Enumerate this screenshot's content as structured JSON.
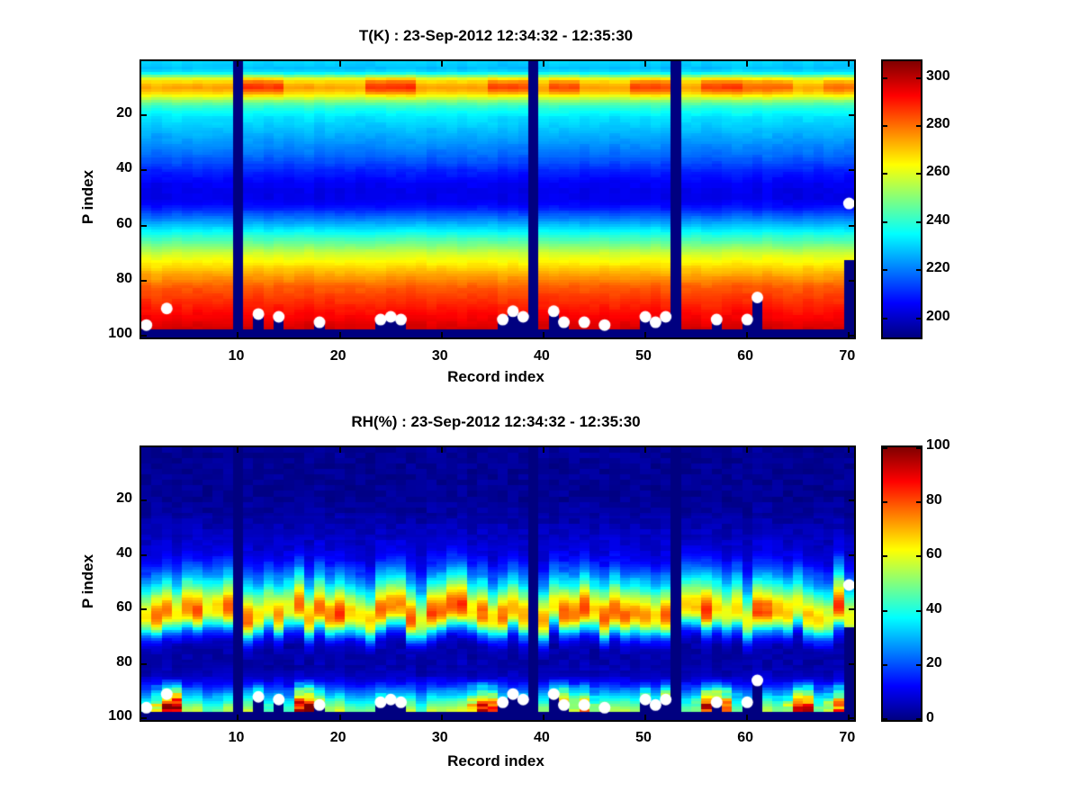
{
  "figure": {
    "background": "#ffffff",
    "missing_data_color": "#000080",
    "marker_color": "#ffffff"
  },
  "chart_data": [
    {
      "type": "heatmap",
      "kind": "T",
      "title": "T(K) : 23-Sep-2012 12:34:32 - 12:35:30",
      "xlabel": "Record index",
      "ylabel": "P index",
      "x_range": [
        1,
        70
      ],
      "y_range": [
        1,
        100
      ],
      "y_axis_reversed": true,
      "x_ticks": [
        10,
        20,
        30,
        40,
        50,
        60,
        70
      ],
      "y_ticks": [
        20,
        40,
        60,
        80,
        100
      ],
      "grid": false,
      "colormap": "jet",
      "color_range": [
        192,
        307
      ],
      "colorbar_ticks": [
        300,
        280,
        260,
        240,
        220,
        200
      ],
      "profile_by_p": [
        230,
        229,
        228,
        230,
        236,
        248,
        260,
        268,
        272,
        274,
        272,
        268,
        262,
        256,
        250,
        245,
        241,
        238,
        236,
        234,
        232,
        231,
        230,
        229,
        228,
        227,
        226,
        225,
        224,
        223,
        222,
        221,
        220,
        219,
        218,
        216,
        215,
        213,
        212,
        210,
        209,
        208,
        207,
        206,
        205,
        205,
        204,
        204,
        204,
        204,
        205,
        206,
        208,
        210,
        213,
        216,
        219,
        222,
        225,
        228,
        231,
        234,
        237,
        240,
        243,
        246,
        249,
        252,
        255,
        258,
        260,
        262,
        264,
        266,
        268,
        270,
        272,
        274,
        276,
        278,
        280,
        282,
        283,
        284,
        285,
        286,
        287,
        288,
        289,
        290,
        291,
        292,
        293,
        294,
        295,
        296,
        297,
        297,
        297,
        297
      ],
      "warm_blobs": [
        {
          "from_record": 11,
          "to_record": 14,
          "delta": 13
        },
        {
          "from_record": 23,
          "to_record": 27,
          "delta": 14
        },
        {
          "from_record": 35,
          "to_record": 38,
          "delta": 12
        },
        {
          "from_record": 41,
          "to_record": 43,
          "delta": 10
        },
        {
          "from_record": 49,
          "to_record": 52,
          "delta": 11
        },
        {
          "from_record": 56,
          "to_record": 59,
          "delta": 12
        },
        {
          "from_record": 60,
          "to_record": 64,
          "delta": 7
        },
        {
          "from_record": 68,
          "to_record": 70,
          "delta": 7
        }
      ],
      "missing_records": [
        10,
        39,
        53
      ],
      "missing_bottom_from_p": 98,
      "partial_missing": [
        {
          "record": 70,
          "from_p": 73
        },
        {
          "record": 61,
          "from_p": 87
        },
        {
          "record": 12,
          "from_p": 93
        },
        {
          "record": 14,
          "from_p": 94
        },
        {
          "record": 18,
          "from_p": 96
        },
        {
          "record": 24,
          "from_p": 95
        },
        {
          "record": 25,
          "from_p": 94
        },
        {
          "record": 26,
          "from_p": 95
        },
        {
          "record": 36,
          "from_p": 95
        },
        {
          "record": 37,
          "from_p": 92
        },
        {
          "record": 38,
          "from_p": 94
        },
        {
          "record": 41,
          "from_p": 92
        },
        {
          "record": 42,
          "from_p": 96
        },
        {
          "record": 50,
          "from_p": 94
        },
        {
          "record": 51,
          "from_p": 96
        },
        {
          "record": 52,
          "from_p": 94
        },
        {
          "record": 57,
          "from_p": 95
        },
        {
          "record": 60,
          "from_p": 95
        }
      ],
      "markers": [
        {
          "record": 1,
          "p": 96
        },
        {
          "record": 3,
          "p": 90
        },
        {
          "record": 12,
          "p": 92
        },
        {
          "record": 14,
          "p": 93
        },
        {
          "record": 18,
          "p": 95
        },
        {
          "record": 24,
          "p": 94
        },
        {
          "record": 25,
          "p": 93
        },
        {
          "record": 26,
          "p": 94
        },
        {
          "record": 36,
          "p": 94
        },
        {
          "record": 37,
          "p": 91
        },
        {
          "record": 38,
          "p": 93
        },
        {
          "record": 41,
          "p": 91
        },
        {
          "record": 42,
          "p": 95
        },
        {
          "record": 44,
          "p": 95
        },
        {
          "record": 46,
          "p": 96
        },
        {
          "record": 50,
          "p": 93
        },
        {
          "record": 51,
          "p": 95
        },
        {
          "record": 52,
          "p": 93
        },
        {
          "record": 57,
          "p": 94
        },
        {
          "record": 60,
          "p": 94
        },
        {
          "record": 61,
          "p": 86
        },
        {
          "record": 70,
          "p": 52
        }
      ]
    },
    {
      "type": "heatmap",
      "kind": "RH",
      "title": "RH(%) : 23-Sep-2012 12:34:32 - 12:35:30",
      "xlabel": "Record index",
      "ylabel": "P index",
      "x_range": [
        1,
        70
      ],
      "y_range": [
        1,
        100
      ],
      "y_axis_reversed": true,
      "x_ticks": [
        10,
        20,
        30,
        40,
        50,
        60,
        70
      ],
      "y_ticks": [
        20,
        40,
        60,
        80,
        100
      ],
      "grid": false,
      "colormap": "jet",
      "color_range": [
        0,
        100
      ],
      "colorbar_ticks": [
        100,
        80,
        60,
        40,
        20,
        0
      ],
      "profile_by_p": [
        2,
        2,
        2,
        2,
        2,
        2,
        2,
        2,
        2,
        2,
        2,
        2,
        2,
        2,
        2,
        2,
        2,
        2,
        2,
        2,
        3,
        3,
        3,
        3,
        3,
        4,
        4,
        4,
        5,
        5,
        6,
        6,
        6,
        7,
        7,
        8,
        8,
        9,
        9,
        10,
        11,
        12,
        14,
        16,
        18,
        20,
        23,
        26,
        29,
        32,
        36,
        40,
        44,
        48,
        52,
        56,
        60,
        64,
        67,
        69,
        70,
        70,
        68,
        64,
        58,
        50,
        42,
        34,
        26,
        20,
        15,
        11,
        8,
        6,
        5,
        4,
        4,
        4,
        4,
        4,
        4,
        5,
        5,
        6,
        8,
        10,
        13,
        16,
        20,
        24,
        28,
        32,
        36,
        40,
        44,
        48,
        50,
        50,
        50,
        50
      ],
      "surface_rh_by_record": [
        25,
        60,
        95,
        100,
        40,
        30,
        25,
        35,
        30,
        0,
        30,
        70,
        40,
        45,
        30,
        95,
        100,
        70,
        30,
        40,
        35,
        30,
        40,
        55,
        45,
        50,
        35,
        30,
        25,
        35,
        30,
        40,
        70,
        90,
        80,
        50,
        40,
        45,
        0,
        35,
        85,
        90,
        60,
        75,
        50,
        40,
        45,
        35,
        30,
        70,
        45,
        85,
        0,
        40,
        50,
        90,
        95,
        80,
        45,
        40,
        50,
        35,
        45,
        55,
        85,
        90,
        45,
        55,
        80,
        75
      ],
      "missing_records": [
        10,
        39,
        53
      ],
      "missing_bottom_from_p": 98,
      "partial_missing": [
        {
          "record": 70,
          "from_p": 67
        },
        {
          "record": 61,
          "from_p": 87
        },
        {
          "record": 12,
          "from_p": 93
        },
        {
          "record": 14,
          "from_p": 94
        },
        {
          "record": 18,
          "from_p": 96
        },
        {
          "record": 24,
          "from_p": 95
        },
        {
          "record": 25,
          "from_p": 94
        },
        {
          "record": 26,
          "from_p": 95
        },
        {
          "record": 36,
          "from_p": 95
        },
        {
          "record": 37,
          "from_p": 92
        },
        {
          "record": 38,
          "from_p": 94
        },
        {
          "record": 41,
          "from_p": 92
        },
        {
          "record": 42,
          "from_p": 96
        },
        {
          "record": 50,
          "from_p": 94
        },
        {
          "record": 51,
          "from_p": 96
        },
        {
          "record": 52,
          "from_p": 94
        },
        {
          "record": 57,
          "from_p": 95
        },
        {
          "record": 60,
          "from_p": 95
        }
      ],
      "markers": [
        {
          "record": 1,
          "p": 96
        },
        {
          "record": 3,
          "p": 91
        },
        {
          "record": 12,
          "p": 92
        },
        {
          "record": 14,
          "p": 93
        },
        {
          "record": 18,
          "p": 95
        },
        {
          "record": 24,
          "p": 94
        },
        {
          "record": 25,
          "p": 93
        },
        {
          "record": 26,
          "p": 94
        },
        {
          "record": 36,
          "p": 94
        },
        {
          "record": 37,
          "p": 91
        },
        {
          "record": 38,
          "p": 93
        },
        {
          "record": 41,
          "p": 91
        },
        {
          "record": 42,
          "p": 95
        },
        {
          "record": 44,
          "p": 95
        },
        {
          "record": 46,
          "p": 96
        },
        {
          "record": 50,
          "p": 93
        },
        {
          "record": 51,
          "p": 95
        },
        {
          "record": 52,
          "p": 93
        },
        {
          "record": 57,
          "p": 94
        },
        {
          "record": 60,
          "p": 94
        },
        {
          "record": 61,
          "p": 86
        },
        {
          "record": 70,
          "p": 51
        }
      ]
    }
  ]
}
